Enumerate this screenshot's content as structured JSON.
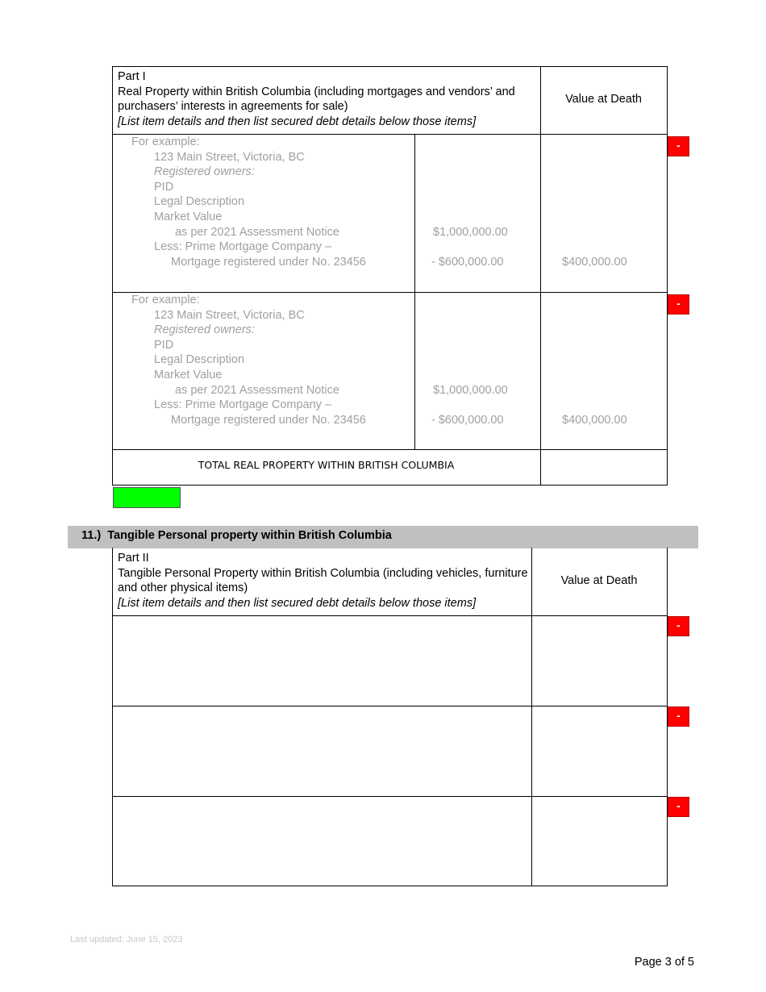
{
  "part1": {
    "title": "Part I",
    "description": "Real Property within British Columbia (including mortgages and vendors’ and purchasers’ interests in agreements for sale)",
    "instruction": "[List item details and then list secured debt details below those items]",
    "value_header": "Value at Death",
    "rows": [
      {
        "lines": [
          "For example:",
          "123 Main Street, Victoria, BC",
          "Registered owners:",
          "PID",
          "Legal Description",
          "Market Value",
          "as per 2021 Assessment Notice",
          "Less: Prime Mortgage Company –",
          "Mortgage registered under No. 23456"
        ],
        "market_value": "$1,000,000.00",
        "mortgage": "- $600,000.00",
        "value": "$400,000.00",
        "remove_label": "-"
      },
      {
        "lines": [
          "For example:",
          "123 Main Street, Victoria, BC",
          "Registered owners:",
          "PID",
          "Legal Description",
          "Market Value",
          "as per 2021 Assessment Notice",
          "Less: Prime Mortgage Company –",
          "Mortgage registered under No. 23456"
        ],
        "market_value": "$1,000,000.00",
        "mortgage": "- $600,000.00",
        "value": "$400,000.00",
        "remove_label": "-"
      }
    ],
    "total_label": "TOTAL REAL PROPERTY WITHIN BRITISH COLUMBIA",
    "total_value": ""
  },
  "section11": {
    "heading": "11.)  Tangible Personal property within British Columbia"
  },
  "part2": {
    "title": "Part II",
    "description": "Tangible Personal Property within British Columbia (including vehicles, furniture and other physical items)",
    "instruction": "[List item details and then list secured debt details below those items]",
    "value_header": "Value at Death",
    "rows": [
      {
        "remove_label": "-"
      },
      {
        "remove_label": "-"
      },
      {
        "remove_label": "-"
      }
    ]
  },
  "colors": {
    "remove_button": "#ff0000",
    "add_button": "#00ff00",
    "section_bar": "#c0c0c0"
  },
  "footer": {
    "last_updated": "Last updated: June 15, 2023",
    "page": "Page 3 of 5"
  }
}
